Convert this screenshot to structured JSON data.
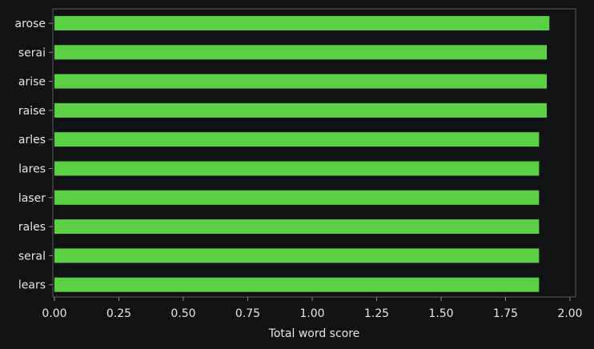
{
  "chart_data": {
    "type": "bar",
    "orientation": "horizontal",
    "categories": [
      "arose",
      "serai",
      "arise",
      "raise",
      "arles",
      "lares",
      "laser",
      "rales",
      "seral",
      "lears"
    ],
    "values": [
      1.92,
      1.91,
      1.91,
      1.91,
      1.88,
      1.88,
      1.88,
      1.88,
      1.88,
      1.88
    ],
    "xlabel": "Total word score",
    "ylabel": "",
    "xlim": [
      0,
      2.0
    ],
    "xticks": [
      "0.00",
      "0.25",
      "0.50",
      "0.75",
      "1.00",
      "1.25",
      "1.50",
      "1.75",
      "2.00"
    ],
    "grid": false,
    "bar_color": "#5cd044",
    "background": "#111213",
    "text_color": "#e6e6e6"
  }
}
